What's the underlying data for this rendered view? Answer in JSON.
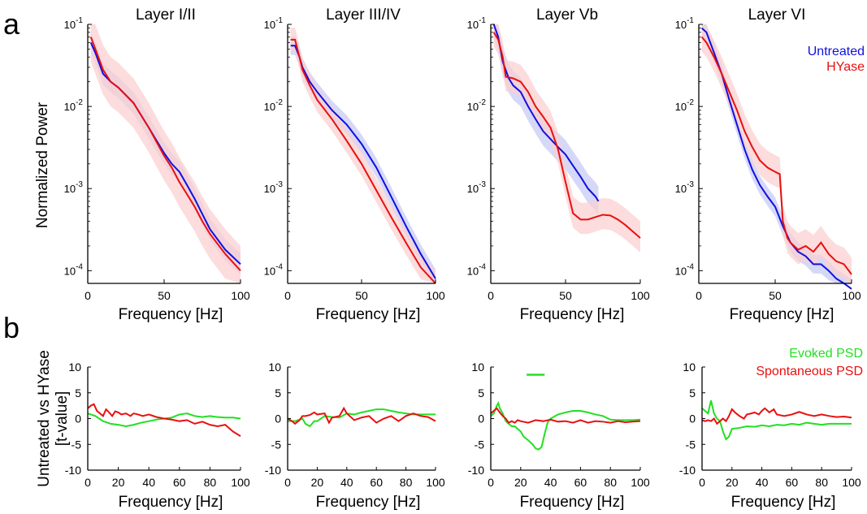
{
  "panel_labels": {
    "a": "a",
    "b": "b"
  },
  "colors": {
    "untreated": "#1010e0",
    "untreated_band": "#c8cbf5",
    "hyase": "#e81010",
    "hyase_band": "#fbd0d0",
    "evoked": "#22e022",
    "spontaneous": "#e81010"
  },
  "chart_data": [
    {
      "type": "line",
      "title": "Layer I/II",
      "xlabel": "Frequency [Hz]",
      "ylabel": "Normalized Power",
      "xlim": [
        0,
        100
      ],
      "xticks": [
        0,
        50,
        100
      ],
      "yscale": "log",
      "ylim": [
        7e-05,
        0.1
      ],
      "yticks": [
        "10^-1",
        "10^-2",
        "10^-3",
        "10^-4"
      ],
      "series": [
        {
          "name": "Untreated",
          "x": [
            2,
            5,
            10,
            15,
            20,
            30,
            40,
            50,
            55,
            60,
            65,
            70,
            73,
            80,
            90,
            100
          ],
          "values": [
            0.06,
            0.045,
            0.025,
            0.02,
            0.017,
            0.011,
            0.0055,
            0.0027,
            0.002,
            0.0016,
            0.0011,
            0.00075,
            0.00058,
            0.00032,
            0.00018,
            0.00012
          ],
          "band": [
            1.35,
            1.35
          ]
        },
        {
          "name": "HYase",
          "x": [
            2,
            5,
            10,
            15,
            20,
            30,
            40,
            50,
            55,
            60,
            65,
            70,
            75,
            80,
            90,
            100
          ],
          "values": [
            0.07,
            0.05,
            0.028,
            0.02,
            0.017,
            0.011,
            0.0055,
            0.0025,
            0.0018,
            0.0012,
            0.00085,
            0.0006,
            0.0004,
            0.00028,
            0.00016,
            0.0001
          ],
          "band": [
            2.0,
            2.0
          ]
        }
      ]
    },
    {
      "type": "line",
      "title": "Layer III/IV",
      "xlabel": "Frequency [Hz]",
      "ylabel": "",
      "xlim": [
        0,
        100
      ],
      "xticks": [
        0,
        50,
        100
      ],
      "yscale": "log",
      "ylim": [
        7e-05,
        0.1
      ],
      "yticks": [
        "10^-1",
        "10^-2",
        "10^-3",
        "10^-4"
      ],
      "series": [
        {
          "name": "Untreated",
          "x": [
            2,
            5,
            8,
            10,
            15,
            20,
            30,
            40,
            50,
            60,
            70,
            80,
            90,
            100
          ],
          "values": [
            0.055,
            0.055,
            0.04,
            0.03,
            0.02,
            0.015,
            0.009,
            0.006,
            0.0035,
            0.0018,
            0.0008,
            0.00035,
            0.00016,
            8e-05
          ],
          "band": [
            1.3,
            1.3
          ]
        },
        {
          "name": "HYase",
          "x": [
            2,
            5,
            8,
            10,
            15,
            20,
            30,
            40,
            50,
            60,
            70,
            80,
            90,
            100
          ],
          "values": [
            0.065,
            0.065,
            0.04,
            0.028,
            0.018,
            0.012,
            0.007,
            0.0038,
            0.002,
            0.00095,
            0.00045,
            0.00022,
            0.00011,
            7e-05
          ],
          "band": [
            1.4,
            1.4
          ]
        }
      ]
    },
    {
      "type": "line",
      "title": "Layer Vb",
      "xlabel": "Frequency [Hz]",
      "ylabel": "",
      "xlim": [
        0,
        100
      ],
      "xticks": [
        0,
        50,
        100
      ],
      "yscale": "log",
      "ylim": [
        7e-05,
        0.1
      ],
      "yticks": [
        "10^-1",
        "10^-2",
        "10^-3",
        "10^-4"
      ],
      "series": [
        {
          "name": "Untreated",
          "x": [
            2,
            5,
            8,
            12,
            15,
            20,
            25,
            30,
            35,
            40,
            45,
            50,
            55,
            60,
            65,
            70,
            72
          ],
          "values": [
            0.1,
            0.07,
            0.035,
            0.022,
            0.018,
            0.015,
            0.01,
            0.007,
            0.005,
            0.004,
            0.0032,
            0.0026,
            0.0019,
            0.0014,
            0.001,
            0.0008,
            0.0007
          ],
          "band": [
            1.5,
            1.5
          ]
        },
        {
          "name": "HYase",
          "x": [
            2,
            5,
            8,
            10,
            15,
            20,
            25,
            30,
            35,
            40,
            45,
            50,
            55,
            60,
            65,
            70,
            75,
            80,
            85,
            90,
            95,
            100
          ],
          "values": [
            0.08,
            0.065,
            0.04,
            0.023,
            0.022,
            0.02,
            0.015,
            0.01,
            0.0075,
            0.0055,
            0.003,
            0.0012,
            0.0005,
            0.00042,
            0.00042,
            0.00045,
            0.00048,
            0.00047,
            0.00042,
            0.00036,
            0.0003,
            0.00025
          ],
          "band": [
            1.5,
            1.6
          ]
        }
      ]
    },
    {
      "type": "line",
      "title": "Layer VI",
      "xlabel": "Frequency [Hz]",
      "ylabel": "",
      "xlim": [
        0,
        100
      ],
      "xticks": [
        0,
        50,
        100
      ],
      "yscale": "log",
      "ylim": [
        7e-05,
        0.1
      ],
      "yticks": [
        "10^-1",
        "10^-2",
        "10^-3",
        "10^-4"
      ],
      "legend": {
        "entries": [
          "Untreated",
          "HYase"
        ],
        "position": "top-right"
      },
      "series": [
        {
          "name": "Untreated",
          "x": [
            2,
            5,
            10,
            15,
            20,
            25,
            30,
            35,
            40,
            45,
            50,
            55,
            60,
            65,
            70,
            75,
            80,
            85,
            90,
            95,
            100
          ],
          "values": [
            0.09,
            0.08,
            0.045,
            0.025,
            0.012,
            0.006,
            0.003,
            0.0017,
            0.0011,
            0.0008,
            0.0006,
            0.00035,
            0.00022,
            0.00017,
            0.00015,
            0.00012,
            0.00012,
            0.0001,
            8e-05,
            7e-05,
            6e-05
          ],
          "band": [
            1.3,
            1.3
          ]
        },
        {
          "name": "HYase",
          "x": [
            2,
            5,
            10,
            15,
            20,
            25,
            30,
            35,
            40,
            45,
            50,
            53,
            55,
            58,
            60,
            65,
            70,
            75,
            80,
            85,
            90,
            95,
            100
          ],
          "values": [
            0.07,
            0.06,
            0.04,
            0.025,
            0.015,
            0.009,
            0.005,
            0.0032,
            0.0022,
            0.0018,
            0.0016,
            0.0015,
            0.0004,
            0.00025,
            0.00022,
            0.00018,
            0.0002,
            0.00017,
            0.00022,
            0.00016,
            0.00013,
            0.00012,
            9e-05
          ],
          "band": [
            1.5,
            1.6
          ]
        }
      ]
    },
    {
      "type": "line",
      "title": "",
      "xlabel": "Frequency [Hz]",
      "ylabel": "Untreated vs HYase\n[t-value]",
      "xlim": [
        0,
        100
      ],
      "xticks": [
        0,
        20,
        40,
        60,
        80,
        100
      ],
      "ylim": [
        -10,
        10
      ],
      "yticks": [
        10,
        5,
        0,
        -5,
        -10
      ],
      "series": [
        {
          "name": "Evoked PSD",
          "x": [
            0,
            5,
            10,
            15,
            20,
            25,
            30,
            35,
            40,
            45,
            50,
            55,
            60,
            65,
            70,
            75,
            80,
            85,
            90,
            95,
            100
          ],
          "values": [
            1,
            0.5,
            -0.5,
            -1,
            -1.2,
            -1.5,
            -1.2,
            -0.8,
            -0.5,
            -0.2,
            0,
            0.2,
            0.8,
            1,
            0.5,
            0.3,
            0.5,
            0.3,
            0.2,
            0.2,
            0
          ]
        },
        {
          "name": "Spontaneous PSD",
          "x": [
            0,
            2,
            4,
            6,
            8,
            10,
            12,
            14,
            16,
            18,
            20,
            22,
            25,
            28,
            30,
            33,
            36,
            40,
            45,
            50,
            55,
            60,
            65,
            70,
            75,
            80,
            85,
            90,
            95,
            100
          ],
          "values": [
            2,
            2.5,
            2.8,
            1.5,
            1,
            0.5,
            1.8,
            1.2,
            0.5,
            1.4,
            1.2,
            0.8,
            1,
            0.5,
            1,
            0.8,
            0.5,
            0.8,
            0.3,
            0,
            -0.2,
            -0.5,
            -0.3,
            -1,
            -0.6,
            -1.2,
            -1.5,
            -1.2,
            -2.5,
            -3.4
          ]
        }
      ]
    },
    {
      "type": "line",
      "title": "",
      "xlabel": "Frequency [Hz]",
      "ylabel": "",
      "xlim": [
        0,
        100
      ],
      "xticks": [
        0,
        20,
        40,
        60,
        80,
        100
      ],
      "ylim": [
        -10,
        10
      ],
      "yticks": [
        10,
        5,
        0,
        -5,
        -10
      ],
      "series": [
        {
          "name": "Evoked PSD",
          "x": [
            0,
            5,
            10,
            12,
            15,
            18,
            20,
            25,
            30,
            35,
            40,
            45,
            50,
            55,
            60,
            65,
            70,
            75,
            80,
            85,
            90,
            95,
            100
          ],
          "values": [
            -0.5,
            -0.5,
            0,
            -1,
            -1.5,
            -0.5,
            -0.5,
            0.5,
            0.3,
            0.2,
            1,
            0.8,
            1.2,
            1.5,
            1.8,
            1.8,
            1.5,
            1.2,
            1,
            0.8,
            0.8,
            0.8,
            0.8
          ]
        },
        {
          "name": "Spontaneous PSD",
          "x": [
            0,
            3,
            5,
            8,
            10,
            12,
            15,
            18,
            20,
            25,
            28,
            30,
            35,
            38,
            40,
            42,
            45,
            50,
            55,
            60,
            65,
            70,
            75,
            80,
            85,
            90,
            95,
            100
          ],
          "values": [
            0,
            -0.5,
            -1,
            -0.3,
            0.5,
            0.5,
            0.7,
            1.2,
            0.8,
            1,
            -0.8,
            0.2,
            0.5,
            2,
            1,
            0.5,
            -0.3,
            0.2,
            0.5,
            -0.8,
            0,
            0.5,
            -0.5,
            0.5,
            1,
            0.5,
            0.3,
            -0.5
          ]
        }
      ]
    },
    {
      "type": "line",
      "title": "",
      "xlabel": "Frequency [Hz]",
      "ylabel": "",
      "xlim": [
        0,
        100
      ],
      "xticks": [
        0,
        20,
        40,
        60,
        80,
        100
      ],
      "ylim": [
        -10,
        10
      ],
      "yticks": [
        10,
        5,
        0,
        -5,
        -10
      ],
      "significance_bar": {
        "x": [
          24,
          36
        ],
        "y": 8.5
      },
      "series": [
        {
          "name": "Evoked PSD",
          "x": [
            0,
            2,
            4,
            5,
            6,
            8,
            10,
            12,
            14,
            16,
            18,
            20,
            22,
            25,
            28,
            30,
            32,
            34,
            36,
            38,
            40,
            45,
            50,
            55,
            60,
            65,
            70,
            75,
            80,
            85,
            90,
            95,
            100
          ],
          "values": [
            0.5,
            1,
            2.5,
            3,
            2,
            1,
            -0.5,
            -1,
            -1.5,
            -1.5,
            -2,
            -2.5,
            -3.5,
            -4.2,
            -5,
            -5.8,
            -6,
            -5.5,
            -3,
            -0.8,
            0,
            0.8,
            1.2,
            1.5,
            1.5,
            1.2,
            0.8,
            0.5,
            -0.2,
            -0.3,
            -0.3,
            -0.3,
            -0.2
          ]
        },
        {
          "name": "Spontaneous PSD",
          "x": [
            0,
            2,
            4,
            6,
            8,
            10,
            12,
            14,
            16,
            18,
            20,
            25,
            30,
            35,
            40,
            45,
            50,
            55,
            60,
            65,
            70,
            75,
            80,
            85,
            90,
            95,
            100
          ],
          "values": [
            1,
            1.5,
            2,
            1.2,
            0.5,
            0,
            -0.8,
            -0.5,
            -0.8,
            -0.3,
            -0.5,
            -0.8,
            -0.3,
            -0.5,
            -0.2,
            -0.6,
            -0.5,
            -0.8,
            -0.3,
            -0.8,
            -0.5,
            -0.6,
            -0.8,
            -0.5,
            -0.7,
            -0.6,
            -0.5
          ]
        }
      ]
    },
    {
      "type": "line",
      "title": "",
      "xlabel": "Frequency [Hz]",
      "ylabel": "",
      "xlim": [
        0,
        100
      ],
      "xticks": [
        0,
        20,
        40,
        60,
        80,
        100
      ],
      "ylim": [
        -10,
        10
      ],
      "yticks": [
        10,
        5,
        0,
        -5,
        -10
      ],
      "legend": {
        "entries": [
          "Evoked PSD",
          "Spontaneous PSD"
        ],
        "position": "top-right"
      },
      "series": [
        {
          "name": "Evoked PSD",
          "x": [
            0,
            2,
            4,
            6,
            8,
            10,
            12,
            14,
            16,
            18,
            20,
            25,
            30,
            35,
            40,
            45,
            50,
            55,
            60,
            65,
            70,
            75,
            80,
            85,
            90,
            95,
            100
          ],
          "values": [
            2,
            1.5,
            1,
            3.5,
            1,
            0,
            -0.5,
            -2.5,
            -4,
            -3.5,
            -2,
            -1.8,
            -1.5,
            -1.6,
            -1.3,
            -1.5,
            -1.2,
            -1.3,
            -1,
            -1.2,
            -0.8,
            -1,
            -1.2,
            -1,
            -1,
            -1,
            -1
          ]
        },
        {
          "name": "Spontaneous PSD",
          "x": [
            0,
            2,
            4,
            6,
            8,
            10,
            12,
            14,
            16,
            18,
            20,
            22,
            25,
            28,
            30,
            33,
            35,
            38,
            40,
            42,
            45,
            48,
            50,
            55,
            60,
            65,
            70,
            75,
            80,
            85,
            90,
            95,
            100
          ],
          "values": [
            -0.3,
            -0.5,
            -0.3,
            -0.5,
            0,
            -1,
            -0.5,
            0,
            -0.5,
            0.5,
            1.8,
            1.2,
            0.5,
            0,
            0.8,
            1,
            1.2,
            0.8,
            1.5,
            2,
            1.2,
            1.8,
            0.8,
            0.5,
            0.8,
            1.3,
            0.8,
            0.5,
            0.8,
            0.5,
            0.3,
            0.4,
            0.2
          ]
        }
      ]
    }
  ]
}
